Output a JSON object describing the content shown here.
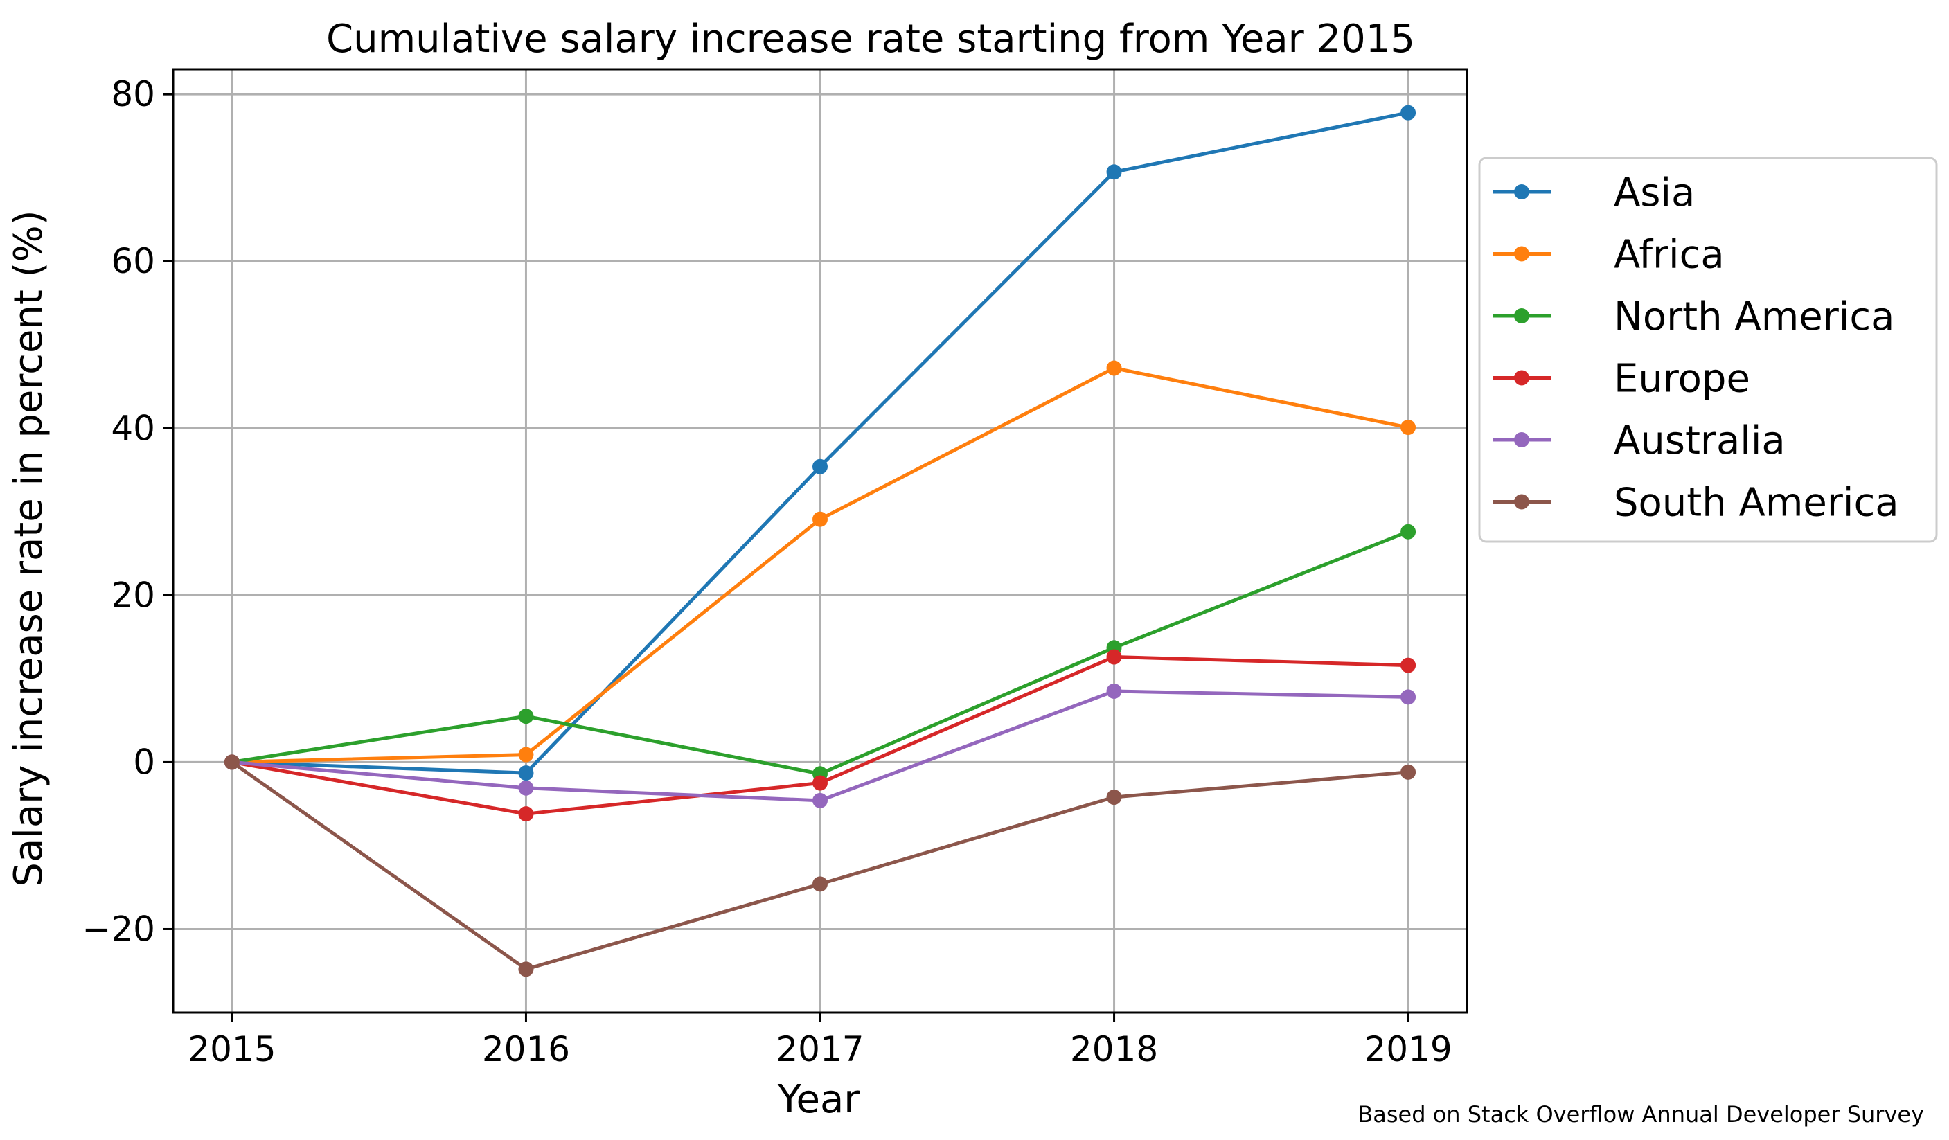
{
  "chart_data": {
    "type": "line",
    "title": "Cumulative salary increase rate starting from Year 2015",
    "xlabel": "Year",
    "ylabel": "Salary increase rate in percent (%)",
    "x": [
      2015,
      2016,
      2017,
      2018,
      2019
    ],
    "xlim": [
      2014.8,
      2019.2
    ],
    "ylim": [
      -30,
      83
    ],
    "yticks": [
      -20,
      0,
      20,
      40,
      60,
      80
    ],
    "ytick_labels": [
      "−20",
      "0",
      "20",
      "40",
      "60",
      "80"
    ],
    "grid": true,
    "legend_position": "outside-right",
    "series": [
      {
        "name": "Asia",
        "color": "#1f77b4",
        "values": [
          0,
          -1.3,
          35.4,
          70.7,
          77.8
        ]
      },
      {
        "name": "Africa",
        "color": "#ff7f0e",
        "values": [
          0,
          0.9,
          29.1,
          47.2,
          40.1
        ]
      },
      {
        "name": "North America",
        "color": "#2ca02c",
        "values": [
          0,
          5.5,
          -1.4,
          13.7,
          27.6
        ]
      },
      {
        "name": "Europe",
        "color": "#d62728",
        "values": [
          0,
          -6.2,
          -2.5,
          12.6,
          11.6
        ]
      },
      {
        "name": "Australia",
        "color": "#9467bd",
        "values": [
          0,
          -3.1,
          -4.6,
          8.5,
          7.8
        ]
      },
      {
        "name": "South America",
        "color": "#8c564b",
        "values": [
          0,
          -24.8,
          -14.6,
          -4.2,
          -1.2
        ]
      }
    ],
    "footnote": "Based on Stack Overflow Annual Developer Survey"
  }
}
